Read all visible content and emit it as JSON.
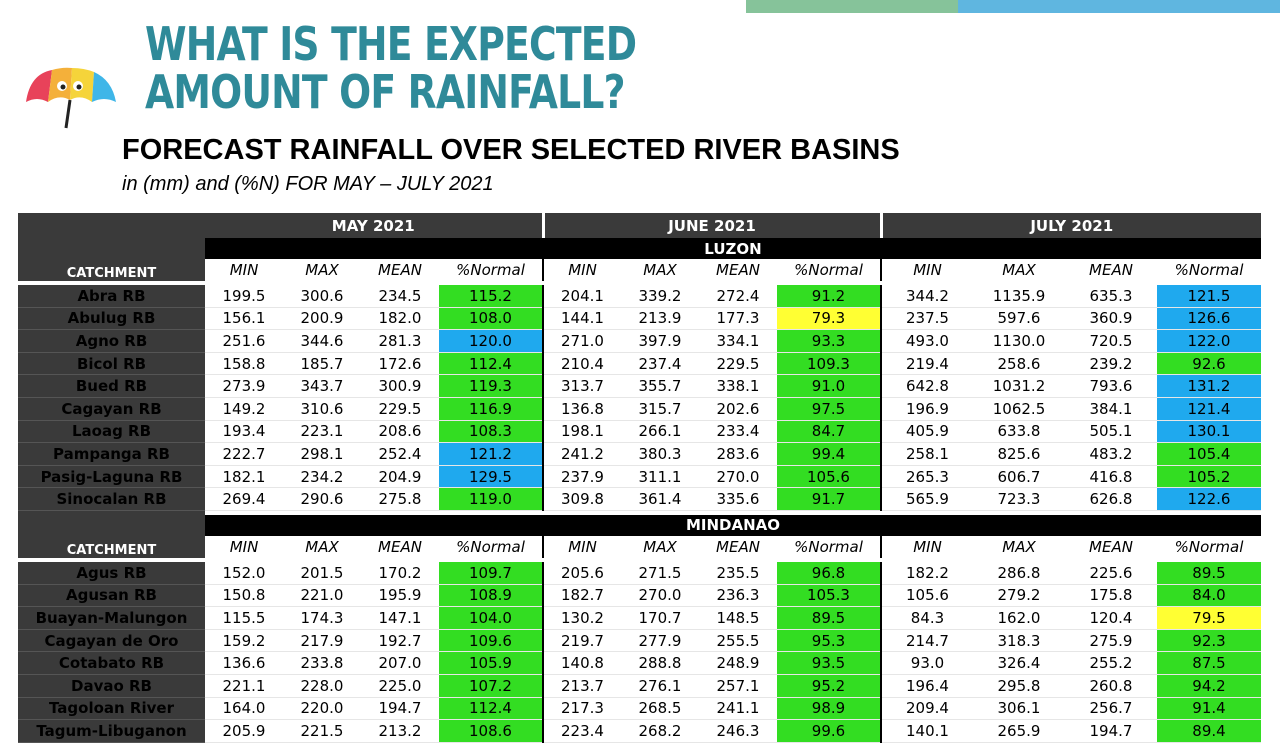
{
  "header": {
    "title_line1": "WHAT IS THE EXPECTED",
    "title_line2": "AMOUNT OF RAINFALL?",
    "subtitle": "FORECAST RAINFALL OVER SELECTED RIVER BASINS",
    "caption": "in (mm) and (%N) FOR MAY – JULY 2021"
  },
  "colors": {
    "heading": "#2f8a99",
    "header_cell": "#3a3a3a",
    "normal_green": "#33dd22",
    "normal_blue": "#1fa9ee",
    "normal_yellow": "#ffff33"
  },
  "table": {
    "months": [
      "MAY 2021",
      "JUNE 2021",
      "JULY 2021"
    ],
    "catchment_label": "CATCHMENT",
    "columns": [
      "MIN",
      "MAX",
      "MEAN",
      "%Normal"
    ],
    "regions": [
      {
        "name": "LUZON",
        "rows": [
          {
            "basin": "Abra RB",
            "vals": [
              "199.5",
              "300.6",
              "234.5",
              "115.2",
              "204.1",
              "339.2",
              "272.4",
              "91.2",
              "344.2",
              "1135.9",
              "635.3",
              "121.5"
            ],
            "hl": [
              "green",
              "green",
              "blue"
            ]
          },
          {
            "basin": "Abulug RB",
            "vals": [
              "156.1",
              "200.9",
              "182.0",
              "108.0",
              "144.1",
              "213.9",
              "177.3",
              "79.3",
              "237.5",
              "597.6",
              "360.9",
              "126.6"
            ],
            "hl": [
              "green",
              "yellow",
              "blue"
            ]
          },
          {
            "basin": "Agno RB",
            "vals": [
              "251.6",
              "344.6",
              "281.3",
              "120.0",
              "271.0",
              "397.9",
              "334.1",
              "93.3",
              "493.0",
              "1130.0",
              "720.5",
              "122.0"
            ],
            "hl": [
              "blue",
              "green",
              "blue"
            ]
          },
          {
            "basin": "Bicol RB",
            "vals": [
              "158.8",
              "185.7",
              "172.6",
              "112.4",
              "210.4",
              "237.4",
              "229.5",
              "109.3",
              "219.4",
              "258.6",
              "239.2",
              "92.6"
            ],
            "hl": [
              "green",
              "green",
              "green"
            ]
          },
          {
            "basin": "Bued RB",
            "vals": [
              "273.9",
              "343.7",
              "300.9",
              "119.3",
              "313.7",
              "355.7",
              "338.1",
              "91.0",
              "642.8",
              "1031.2",
              "793.6",
              "131.2"
            ],
            "hl": [
              "green",
              "green",
              "blue"
            ]
          },
          {
            "basin": "Cagayan RB",
            "vals": [
              "149.2",
              "310.6",
              "229.5",
              "116.9",
              "136.8",
              "315.7",
              "202.6",
              "97.5",
              "196.9",
              "1062.5",
              "384.1",
              "121.4"
            ],
            "hl": [
              "green",
              "green",
              "blue"
            ]
          },
          {
            "basin": "Laoag RB",
            "vals": [
              "193.4",
              "223.1",
              "208.6",
              "108.3",
              "198.1",
              "266.1",
              "233.4",
              "84.7",
              "405.9",
              "633.8",
              "505.1",
              "130.1"
            ],
            "hl": [
              "green",
              "green",
              "blue"
            ]
          },
          {
            "basin": "Pampanga RB",
            "vals": [
              "222.7",
              "298.1",
              "252.4",
              "121.2",
              "241.2",
              "380.3",
              "283.6",
              "99.4",
              "258.1",
              "825.6",
              "483.2",
              "105.4"
            ],
            "hl": [
              "blue",
              "green",
              "green"
            ]
          },
          {
            "basin": "Pasig-Laguna RB",
            "vals": [
              "182.1",
              "234.2",
              "204.9",
              "129.5",
              "237.9",
              "311.1",
              "270.0",
              "105.6",
              "265.3",
              "606.7",
              "416.8",
              "105.2"
            ],
            "hl": [
              "blue",
              "green",
              "green"
            ]
          },
          {
            "basin": "Sinocalan RB",
            "vals": [
              "269.4",
              "290.6",
              "275.8",
              "119.0",
              "309.8",
              "361.4",
              "335.6",
              "91.7",
              "565.9",
              "723.3",
              "626.8",
              "122.6"
            ],
            "hl": [
              "green",
              "green",
              "blue"
            ]
          }
        ]
      },
      {
        "name": "MINDANAO",
        "rows": [
          {
            "basin": "Agus RB",
            "vals": [
              "152.0",
              "201.5",
              "170.2",
              "109.7",
              "205.6",
              "271.5",
              "235.5",
              "96.8",
              "182.2",
              "286.8",
              "225.6",
              "89.5"
            ],
            "hl": [
              "green",
              "green",
              "green"
            ]
          },
          {
            "basin": "Agusan RB",
            "vals": [
              "150.8",
              "221.0",
              "195.9",
              "108.9",
              "182.7",
              "270.0",
              "236.3",
              "105.3",
              "105.6",
              "279.2",
              "175.8",
              "84.0"
            ],
            "hl": [
              "green",
              "green",
              "green"
            ]
          },
          {
            "basin": "Buayan-Malungon",
            "vals": [
              "115.5",
              "174.3",
              "147.1",
              "104.0",
              "130.2",
              "170.7",
              "148.5",
              "89.5",
              "84.3",
              "162.0",
              "120.4",
              "79.5"
            ],
            "hl": [
              "green",
              "green",
              "yellow"
            ]
          },
          {
            "basin": "Cagayan de Oro",
            "vals": [
              "159.2",
              "217.9",
              "192.7",
              "109.6",
              "219.7",
              "277.9",
              "255.5",
              "95.3",
              "214.7",
              "318.3",
              "275.9",
              "92.3"
            ],
            "hl": [
              "green",
              "green",
              "green"
            ]
          },
          {
            "basin": "Cotabato RB",
            "vals": [
              "136.6",
              "233.8",
              "207.0",
              "105.9",
              "140.8",
              "288.8",
              "248.9",
              "93.5",
              "93.0",
              "326.4",
              "255.2",
              "87.5"
            ],
            "hl": [
              "green",
              "green",
              "green"
            ]
          },
          {
            "basin": "Davao RB",
            "vals": [
              "221.1",
              "228.0",
              "225.0",
              "107.2",
              "213.7",
              "276.1",
              "257.1",
              "95.2",
              "196.4",
              "295.8",
              "260.8",
              "94.2"
            ],
            "hl": [
              "green",
              "green",
              "green"
            ]
          },
          {
            "basin": "Tagoloan River",
            "vals": [
              "164.0",
              "220.0",
              "194.7",
              "112.4",
              "217.3",
              "268.5",
              "241.1",
              "98.9",
              "209.4",
              "306.1",
              "256.7",
              "91.4"
            ],
            "hl": [
              "green",
              "green",
              "green"
            ]
          },
          {
            "basin": "Tagum-Libuganon",
            "vals": [
              "205.9",
              "221.5",
              "213.2",
              "108.6",
              "223.4",
              "268.2",
              "246.3",
              "99.6",
              "140.1",
              "265.9",
              "194.7",
              "89.4"
            ],
            "hl": [
              "green",
              "green",
              "green"
            ]
          }
        ]
      }
    ]
  }
}
